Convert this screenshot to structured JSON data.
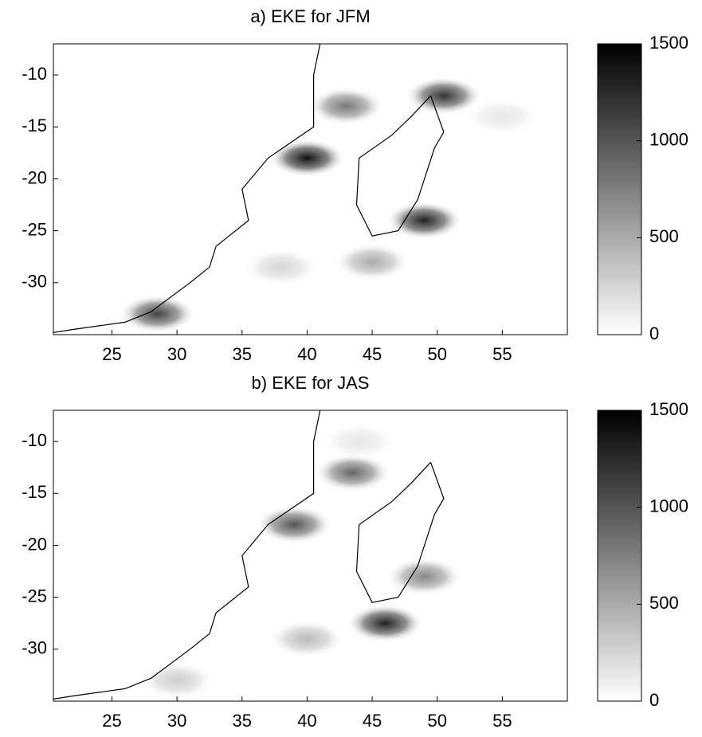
{
  "chart_data": [
    {
      "type": "contour",
      "title": "a) EKE for JFM",
      "xlim": [
        20.5,
        60
      ],
      "ylim": [
        -35,
        -7
      ],
      "xticks": [
        25,
        30,
        35,
        40,
        45,
        50,
        55
      ],
      "yticks": [
        -30,
        -25,
        -20,
        -15,
        -10
      ],
      "clim": [
        0,
        1500
      ],
      "cticks": [
        0,
        500,
        1000,
        1500
      ],
      "peaks": {
        "x": [
          40,
          49,
          43,
          28.5,
          50.5,
          45,
          38,
          55
        ],
        "y": [
          -18,
          -24,
          -13,
          -33,
          -12,
          -28,
          -28.5,
          -14
        ],
        "values": [
          1400,
          1300,
          800,
          1100,
          1200,
          500,
          250,
          150
        ]
      }
    },
    {
      "type": "contour",
      "title": "b) EKE for JAS",
      "xlim": [
        20.5,
        60
      ],
      "ylim": [
        -35,
        -7
      ],
      "xticks": [
        25,
        30,
        35,
        40,
        45,
        50,
        55
      ],
      "yticks": [
        -30,
        -25,
        -20,
        -15,
        -10
      ],
      "clim": [
        0,
        1500
      ],
      "cticks": [
        0,
        500,
        1000,
        1500
      ],
      "peaks": {
        "x": [
          39,
          43.5,
          46,
          49,
          40,
          30,
          44
        ],
        "y": [
          -18,
          -13,
          -27.5,
          -23,
          -29,
          -33,
          -10
        ],
        "values": [
          1000,
          900,
          1300,
          700,
          400,
          300,
          150
        ]
      }
    }
  ]
}
